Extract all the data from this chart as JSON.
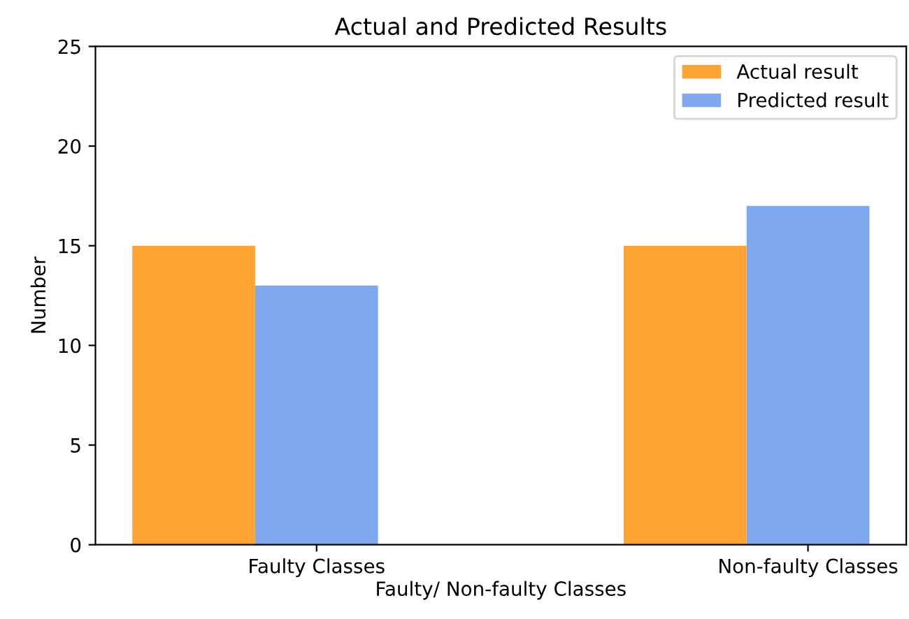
{
  "chart_data": {
    "type": "bar",
    "title": "Actual and Predicted Results",
    "xlabel": "Faulty/ Non-faulty Classes",
    "ylabel": "Number",
    "categories": [
      "Faulty Classes",
      "Non-faulty Classes"
    ],
    "series": [
      {
        "name": "Actual result",
        "color": "#ffa333",
        "values": [
          15,
          15
        ]
      },
      {
        "name": "Predicted result",
        "color": "#80a8ee",
        "values": [
          13,
          17
        ]
      }
    ],
    "ylim": [
      0,
      25
    ],
    "yticks": [
      0,
      5,
      10,
      15,
      20,
      25
    ],
    "legend": "top right",
    "grid": false
  }
}
